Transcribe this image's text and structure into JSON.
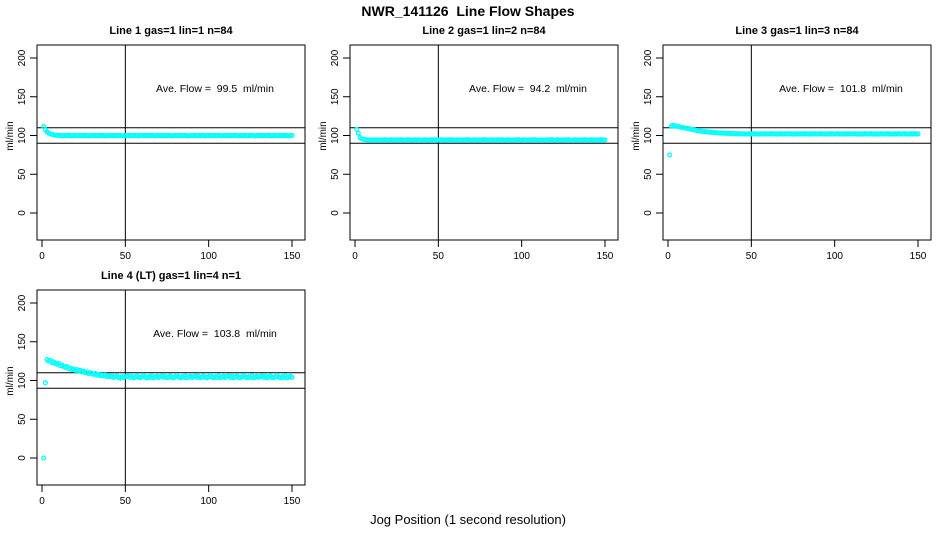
{
  "page": {
    "title": "NWR_141126  Line Flow Shapes",
    "xlabel": "Jog Position (1 second resolution)"
  },
  "chart_data": {
    "type": "scatter",
    "title": "NWR_141126  Line Flow Shapes",
    "xlabel": "Jog Position (1 second resolution)",
    "ylabel": "ml/min",
    "point_color": "#00FFFF",
    "axis_color": "#000000",
    "x_ticks": [
      0,
      50,
      100,
      150
    ],
    "y_ticks": [
      0,
      50,
      100,
      150,
      200
    ],
    "xlim": [
      -3,
      158
    ],
    "ylim": [
      -35,
      217
    ],
    "h_ref_lines": [
      90,
      110
    ],
    "v_ref_lines": [
      50
    ],
    "grid": false,
    "legend": "none",
    "panels": [
      {
        "title": "Line 1 gas=1 lin=1 n=84",
        "gas": 1,
        "lin": 1,
        "n": 84,
        "annotation": "Ave. Flow =  99.5  ml/min",
        "ave_flow_ml_min": 99.5,
        "x_start": 1,
        "y": [
          111.5,
          107.5,
          104.8,
          103,
          102,
          101.3,
          100.8,
          100.4,
          100.2,
          100,
          99.8,
          100.1,
          99.6,
          100,
          99.7,
          100.2,
          99.8,
          99.5,
          100,
          99.9,
          99.8,
          100.1,
          99.6,
          100,
          99.7,
          100.2,
          99.8,
          99.5,
          100,
          99.9,
          99.8,
          100.1,
          99.6,
          100,
          99.7,
          100.2,
          99.8,
          99.5,
          100,
          99.9,
          99.8,
          100.1,
          99.6,
          100,
          99.7,
          100.2,
          99.8,
          99.5,
          100,
          99.9,
          99.8,
          100.1,
          99.6,
          100,
          99.7,
          100.2,
          99.8,
          99.5,
          100,
          99.9,
          99.8,
          100.1,
          99.6,
          100,
          99.7,
          100.2,
          99.8,
          99.5,
          100,
          99.9,
          99.8,
          100.1,
          99.6,
          100,
          99.7,
          100.2,
          99.8,
          99.5,
          100,
          99.9,
          99.8,
          100.1,
          99.6,
          100,
          99.7,
          100.2,
          99.8,
          99.5,
          100,
          99.9,
          99.8,
          100.1,
          99.6,
          100,
          99.7,
          100.2,
          99.8,
          99.5,
          100,
          99.9,
          99.8,
          100.1,
          99.6,
          100,
          99.7,
          100.2,
          99.8,
          99.5,
          100,
          99.9,
          99.8,
          100.1,
          99.6,
          100,
          99.7,
          100.2,
          99.8,
          99.5,
          100,
          99.9,
          99.8,
          100.1,
          99.6,
          100,
          99.7,
          100.2,
          99.8,
          99.5,
          100,
          99.9,
          99.8,
          100.1,
          99.6,
          100,
          99.7,
          100.2,
          99.8,
          99.5,
          100,
          99.9,
          99.8,
          100.1,
          99.6,
          100,
          99.7,
          100.2,
          99.8,
          99.5,
          100,
          99.9
        ]
      },
      {
        "title": "Line 2 gas=1 lin=2 n=84",
        "gas": 1,
        "lin": 2,
        "n": 84,
        "annotation": "Ave. Flow =  94.2  ml/min",
        "ave_flow_ml_min": 94.2,
        "x_start": 1,
        "y": [
          108,
          103,
          97.5,
          95.8,
          95,
          94.6,
          94.4,
          94.3,
          94.2,
          94.2,
          94.2,
          94.5,
          94,
          94.3,
          93.9,
          94.4,
          94.1,
          94.6,
          94,
          94.2,
          94.2,
          94.5,
          94,
          94.3,
          93.9,
          94.4,
          94.1,
          94.6,
          94,
          94.2,
          94.2,
          94.5,
          94,
          94.3,
          93.9,
          94.4,
          94.1,
          94.6,
          94,
          94.2,
          94.2,
          94.5,
          94,
          94.3,
          93.9,
          94.4,
          94.1,
          94.6,
          94,
          94.2,
          94.2,
          94.5,
          94,
          94.3,
          93.9,
          94.4,
          94.1,
          94.6,
          94,
          94.2,
          94.2,
          94.5,
          94,
          94.3,
          93.9,
          94.4,
          94.1,
          94.6,
          94,
          94.2,
          94.2,
          94.5,
          94,
          94.3,
          93.9,
          94.4,
          94.1,
          94.6,
          94,
          94.2,
          94.2,
          94.5,
          94,
          94.3,
          93.9,
          94.4,
          94.1,
          94.6,
          94,
          94.2,
          94.2,
          94.5,
          94,
          94.3,
          93.9,
          94.4,
          94.1,
          94.6,
          94,
          94.2,
          94.2,
          94.5,
          94,
          94.3,
          93.9,
          94.4,
          94.1,
          94.6,
          94,
          94.2,
          94.2,
          94.5,
          94,
          94.3,
          93.9,
          94.4,
          94.1,
          94.6,
          94,
          94.2,
          94.2,
          94.5,
          94,
          94.3,
          93.9,
          94.4,
          94.1,
          94.6,
          94,
          94.2,
          94.2,
          94.5,
          94,
          94.3,
          93.9,
          94.4,
          94.1,
          94.6,
          94,
          94.2,
          94.2,
          94.5,
          94,
          94.3,
          93.9,
          94.4,
          94.1,
          94.6,
          94,
          94.2
        ]
      },
      {
        "title": "Line 3 gas=1 lin=3 n=84",
        "gas": 1,
        "lin": 3,
        "n": 84,
        "annotation": "Ave. Flow =  101.8  ml/min",
        "ave_flow_ml_min": 101.8,
        "x_start": 1,
        "y": [
          75,
          112,
          113,
          112.5,
          112,
          111.5,
          111,
          110.6,
          110.2,
          109.8,
          109.4,
          109,
          108.5,
          108,
          107.5,
          107,
          106.5,
          106.2,
          105.8,
          105.5,
          105.2,
          105,
          104.8,
          104.5,
          104.3,
          104.1,
          103.9,
          103.7,
          103.5,
          103.4,
          103.2,
          103.1,
          103,
          102.9,
          102.8,
          102.7,
          102.6,
          102.5,
          102.4,
          102.3,
          102.3,
          102.2,
          102.2,
          102.1,
          102.1,
          102,
          102,
          102,
          102,
          102,
          102,
          102.3,
          101.8,
          102.1,
          101.7,
          102.2,
          101.9,
          102.4,
          101.8,
          102,
          102,
          102.3,
          101.8,
          102.1,
          101.7,
          102.2,
          101.9,
          102.4,
          101.8,
          102,
          102,
          102.3,
          101.8,
          102.1,
          101.7,
          102.2,
          101.9,
          102.4,
          101.8,
          102,
          102,
          102.3,
          101.8,
          102.1,
          101.7,
          102.2,
          101.9,
          102.4,
          101.8,
          102,
          102,
          102.3,
          101.8,
          102.1,
          101.7,
          102.2,
          101.9,
          102.4,
          101.8,
          102,
          102,
          102.3,
          101.8,
          102.1,
          101.7,
          102.2,
          101.9,
          102.4,
          101.8,
          102,
          102,
          102.3,
          101.8,
          102.1,
          101.7,
          102.2,
          101.9,
          102.4,
          101.8,
          102,
          102,
          102.3,
          101.8,
          102.1,
          101.7,
          102.2,
          101.9,
          102.4,
          101.8,
          102,
          102,
          102.3,
          101.8,
          102.1,
          101.7,
          102.2,
          101.9,
          102.4,
          101.8,
          102,
          102,
          102.3,
          101.8,
          102.1,
          101.7,
          102.2,
          101.9,
          102.4,
          101.8,
          102
        ]
      },
      {
        "title": "Line 4 (LT) gas=1 lin=4 n=1",
        "gas": 1,
        "lin": 4,
        "n": 1,
        "annotation": "Ave. Flow =  103.8  ml/min",
        "ave_flow_ml_min": 103.8,
        "x_start": 1,
        "y": [
          0,
          97,
          127,
          125,
          126,
          123,
          124,
          122,
          121,
          122,
          119,
          120,
          118,
          117,
          118,
          115,
          116,
          114,
          115,
          113,
          114,
          112,
          113,
          111,
          112,
          110,
          111,
          109,
          110,
          109,
          108,
          109,
          107,
          108,
          106,
          107,
          106,
          107,
          105,
          106,
          105,
          106,
          104,
          105,
          106,
          104,
          103,
          105,
          104,
          105,
          105,
          106,
          104,
          105.5,
          103.5,
          104.5,
          106,
          104,
          103.5,
          105,
          106.5,
          104.5,
          103.5,
          105,
          104,
          106,
          103.5,
          104.5,
          105.5,
          104,
          105,
          106,
          104,
          105.5,
          103.5,
          104.5,
          106,
          104,
          103.5,
          105,
          106.5,
          104.5,
          103.5,
          105,
          104,
          106,
          103.5,
          104.5,
          105.5,
          104,
          105,
          106,
          104,
          105.5,
          103.5,
          104.5,
          106,
          104,
          103.5,
          105,
          106.5,
          104.5,
          103.5,
          105,
          104,
          106,
          103.5,
          104.5,
          105.5,
          104,
          105,
          106,
          104,
          105.5,
          103.5,
          104.5,
          106,
          104,
          103.5,
          105,
          106.5,
          104.5,
          103.5,
          105,
          104,
          106,
          103.5,
          104.5,
          105.5,
          104,
          105,
          106,
          104,
          105.5,
          103.5,
          104.5,
          106,
          104,
          103.5,
          105,
          106.5,
          104.5,
          103.5,
          105,
          104,
          106,
          103.5,
          104.5,
          105.5,
          104
        ]
      }
    ]
  }
}
